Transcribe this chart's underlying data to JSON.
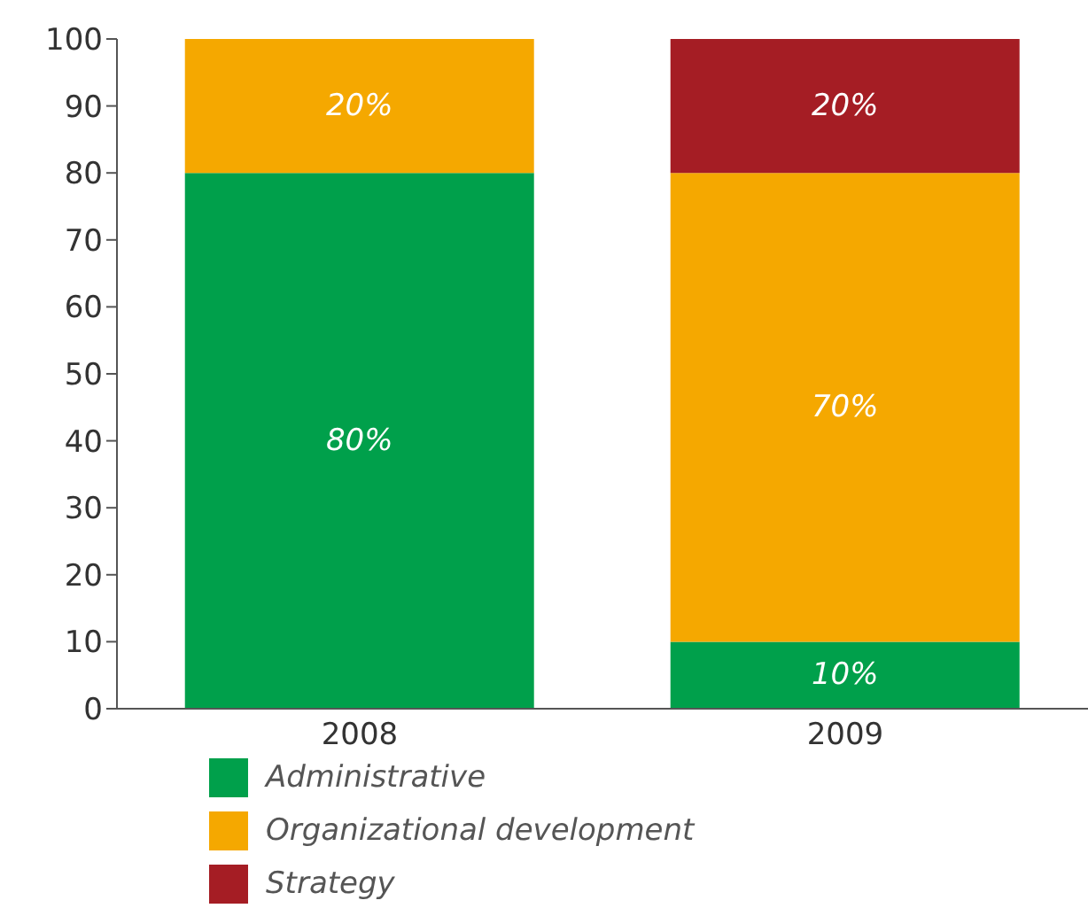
{
  "chart_data": {
    "type": "bar",
    "stacked": true,
    "categories": [
      "2008",
      "2009"
    ],
    "series": [
      {
        "name": "Administrative",
        "color": "#00a04b",
        "values": [
          80,
          10
        ],
        "value_labels": [
          "80%",
          "10%"
        ]
      },
      {
        "name": "Organizational development",
        "color": "#f5a800",
        "values": [
          20,
          70
        ],
        "value_labels": [
          "20%",
          "70%"
        ]
      },
      {
        "name": "Strategy",
        "color": "#a51d24",
        "values": [
          null,
          20
        ],
        "value_labels": [
          null,
          "20%"
        ]
      }
    ],
    "ylim": [
      0,
      100
    ],
    "yticks": [
      0,
      10,
      20,
      30,
      40,
      50,
      60,
      70,
      80,
      90,
      100
    ],
    "grid": false,
    "legend": "bottom"
  }
}
